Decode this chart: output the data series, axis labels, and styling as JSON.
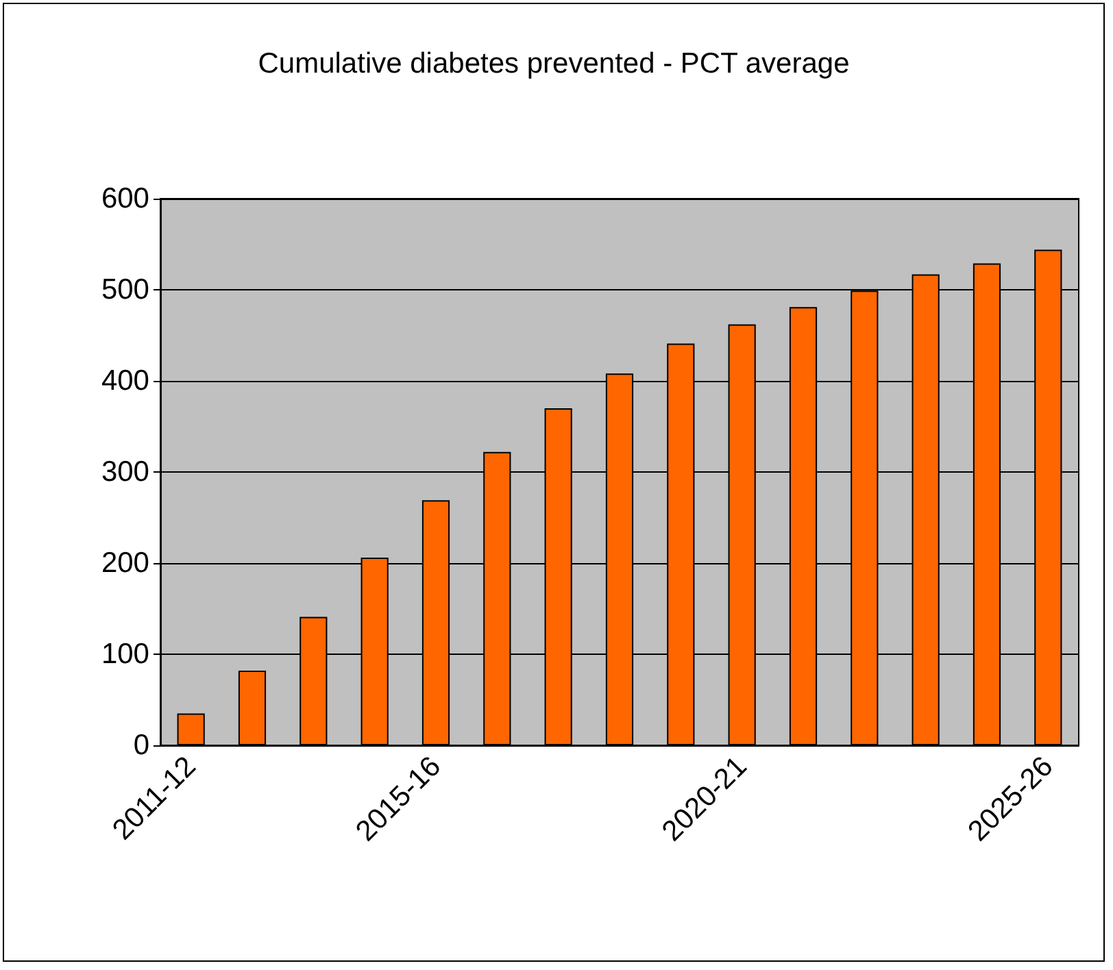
{
  "chart_data": {
    "type": "bar",
    "title": "Cumulative diabetes prevented - PCT average",
    "categories": [
      "2011-12",
      null,
      null,
      null,
      "2015-16",
      null,
      null,
      null,
      null,
      "2020-21",
      null,
      null,
      null,
      null,
      "2025-26"
    ],
    "values": [
      35,
      82,
      141,
      206,
      269,
      322,
      370,
      408,
      441,
      462,
      481,
      499,
      517,
      529,
      544
    ],
    "color": "#ff6600",
    "ylim": [
      0,
      600
    ],
    "yticks": [
      0,
      100,
      200,
      300,
      400,
      500,
      600
    ],
    "grid": "y"
  }
}
